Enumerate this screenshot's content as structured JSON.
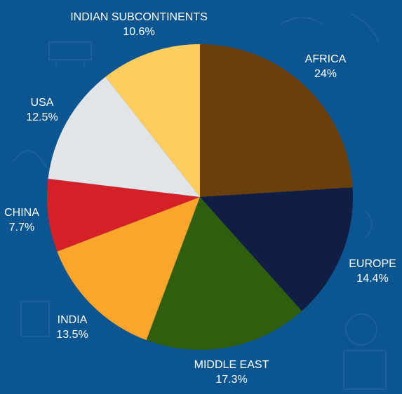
{
  "chart_data": {
    "type": "pie",
    "title": "",
    "slices": [
      {
        "label": "AFRICA",
        "value": 24,
        "display": "24%",
        "color": "#6b3f0c"
      },
      {
        "label": "EUROPE",
        "value": 14.4,
        "display": "14.4%",
        "color": "#0f1e42"
      },
      {
        "label": "MIDDLE EAST",
        "value": 17.3,
        "display": "17.3%",
        "color": "#2f5e0d"
      },
      {
        "label": "INDIA",
        "value": 13.5,
        "display": "13.5%",
        "color": "#fba52b"
      },
      {
        "label": "CHINA",
        "value": 7.7,
        "display": "7.7%",
        "color": "#d42127"
      },
      {
        "label": "USA",
        "value": 12.5,
        "display": "12.5%",
        "color": "#e1e5e8"
      },
      {
        "label": "INDIAN SUBCONTINENTS",
        "value": 10.6,
        "display": "10.6%",
        "color": "#fecd60"
      }
    ]
  },
  "colors": {
    "background": "#0b5591",
    "label_text": "#ffffff"
  }
}
